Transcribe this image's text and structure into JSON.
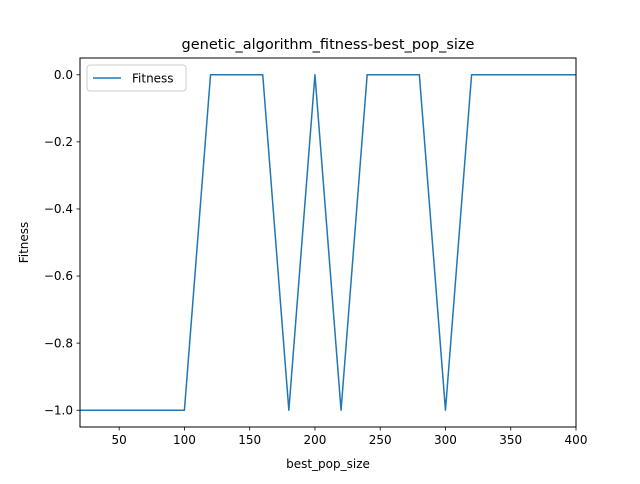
{
  "chart_data": {
    "type": "line",
    "title": "genetic_algorithm_fitness-best_pop_size",
    "xlabel": "best_pop_size",
    "ylabel": "Fitness",
    "xlim": [
      20,
      400
    ],
    "ylim": [
      -1.05,
      0.05
    ],
    "xticks": [
      50,
      100,
      150,
      200,
      250,
      300,
      350,
      400
    ],
    "yticks": [
      0.0,
      -0.2,
      -0.4,
      -0.6,
      -0.8,
      -1.0
    ],
    "grid": false,
    "legend_position": "upper left",
    "series": [
      {
        "name": "Fitness",
        "color": "#1f77b4",
        "x": [
          20,
          40,
          60,
          80,
          100,
          120,
          140,
          160,
          180,
          200,
          220,
          240,
          260,
          280,
          300,
          320,
          340,
          360,
          380,
          400
        ],
        "y": [
          -1.0,
          -1.0,
          -1.0,
          -1.0,
          -1.0,
          0.0,
          0.0,
          0.0,
          -1.0,
          0.0,
          -1.0,
          0.0,
          0.0,
          0.0,
          -1.0,
          0.0,
          0.0,
          0.0,
          0.0,
          0.0
        ]
      }
    ]
  }
}
